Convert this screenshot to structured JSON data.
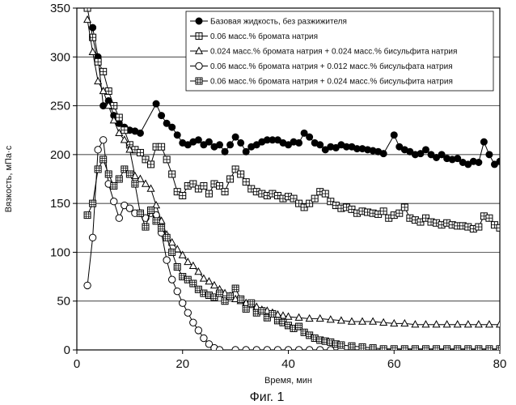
{
  "chart_data": {
    "type": "line",
    "xlabel": "Время, мин",
    "ylabel": "Вязкость, мПа·с",
    "xlim": [
      0,
      80
    ],
    "ylim": [
      0,
      350
    ],
    "xticks": [
      0,
      20,
      40,
      60,
      80
    ],
    "yticks": [
      0,
      50,
      100,
      150,
      200,
      250,
      300,
      350
    ],
    "grid": "horizontal",
    "legend_position": "top-right",
    "caption": "Фиг. 1",
    "series": [
      {
        "name": "Базовая жидкость, без разжижителя",
        "marker": "filled-circle",
        "x": [
          3,
          4,
          5,
          6,
          7,
          8,
          9,
          10,
          11,
          12,
          15,
          16,
          17,
          18,
          19,
          20,
          21,
          22,
          23,
          24,
          25,
          26,
          27,
          28,
          29,
          30,
          31,
          32,
          33,
          34,
          35,
          36,
          37,
          38,
          39,
          40,
          41,
          42,
          43,
          44,
          45,
          46,
          47,
          48,
          49,
          50,
          51,
          52,
          53,
          54,
          55,
          56,
          57,
          58,
          60,
          61,
          62,
          63,
          64,
          65,
          66,
          67,
          68,
          69,
          70,
          71,
          72,
          73,
          74,
          75,
          76,
          77,
          78,
          79,
          80
        ],
        "values": [
          330,
          300,
          250,
          255,
          240,
          232,
          228,
          225,
          224,
          222,
          252,
          240,
          232,
          228,
          220,
          212,
          210,
          213,
          215,
          210,
          213,
          208,
          210,
          203,
          210,
          218,
          212,
          203,
          208,
          210,
          213,
          215,
          215,
          215,
          212,
          210,
          213,
          212,
          222,
          218,
          212,
          210,
          205,
          208,
          207,
          210,
          208,
          208,
          206,
          206,
          205,
          204,
          203,
          201,
          220,
          208,
          205,
          203,
          200,
          201,
          205,
          200,
          197,
          200,
          196,
          195,
          196,
          192,
          190,
          193,
          192,
          213,
          200,
          190,
          193
        ]
      },
      {
        "name": "0.06 масс.% бромата натрия",
        "marker": "square-cross",
        "x": [
          2,
          3,
          4,
          5,
          6,
          7,
          8,
          9,
          10,
          11,
          12,
          13,
          14,
          15,
          16,
          17,
          18,
          19,
          20,
          21,
          22,
          23,
          24,
          25,
          26,
          27,
          28,
          29,
          30,
          31,
          32,
          33,
          34,
          35,
          36,
          37,
          38,
          39,
          40,
          41,
          42,
          43,
          44,
          45,
          46,
          47,
          48,
          49,
          50,
          51,
          52,
          53,
          54,
          55,
          56,
          57,
          58,
          59,
          60,
          61,
          62,
          63,
          64,
          65,
          66,
          67,
          68,
          69,
          70,
          71,
          72,
          73,
          74,
          75,
          76,
          77,
          78,
          79,
          80
        ],
        "values": [
          350,
          320,
          295,
          285,
          265,
          250,
          238,
          225,
          210,
          205,
          202,
          195,
          190,
          208,
          208,
          195,
          180,
          162,
          158,
          168,
          170,
          165,
          168,
          160,
          170,
          168,
          162,
          175,
          185,
          180,
          172,
          165,
          162,
          160,
          158,
          160,
          158,
          155,
          157,
          155,
          150,
          146,
          150,
          155,
          162,
          160,
          152,
          148,
          145,
          146,
          144,
          140,
          142,
          141,
          140,
          139,
          142,
          135,
          138,
          140,
          146,
          135,
          133,
          131,
          135,
          131,
          130,
          128,
          130,
          128,
          127,
          127,
          126,
          124,
          126,
          137,
          135,
          128,
          125
        ]
      },
      {
        "name": "0.024 масс.% бромата натрия + 0.024 масс.% бисульфита натрия",
        "marker": "triangle",
        "x": [
          2,
          3,
          4,
          5,
          6,
          7,
          8,
          9,
          10,
          11,
          12,
          13,
          14,
          15,
          16,
          17,
          18,
          19,
          20,
          21,
          22,
          23,
          24,
          25,
          26,
          27,
          28,
          29,
          30,
          31,
          32,
          33,
          34,
          35,
          36,
          37,
          38,
          39,
          40,
          42,
          44,
          46,
          48,
          50,
          52,
          54,
          56,
          58,
          60,
          62,
          64,
          66,
          68,
          70,
          72,
          74,
          76,
          78,
          80
        ],
        "values": [
          338,
          305,
          275,
          265,
          250,
          235,
          222,
          215,
          205,
          178,
          175,
          170,
          165,
          148,
          132,
          118,
          110,
          103,
          97,
          90,
          86,
          80,
          73,
          70,
          66,
          62,
          58,
          55,
          52,
          50,
          48,
          46,
          44,
          41,
          40,
          38,
          36,
          35,
          34,
          33,
          32,
          32,
          31,
          30,
          29,
          29,
          29,
          28,
          27,
          27,
          26,
          26,
          26,
          26,
          26,
          26,
          26,
          26,
          26
        ]
      },
      {
        "name": "0.06 масс.% бромата натрия + 0.012 масс.% бисульфата натрия",
        "marker": "open-circle",
        "x": [
          2,
          3,
          4,
          5,
          6,
          7,
          8,
          9,
          10,
          11,
          12,
          13,
          14,
          15,
          16,
          17,
          18,
          19,
          20,
          21,
          22,
          23,
          24,
          25,
          26,
          27,
          30,
          32,
          34,
          36,
          38,
          40,
          42,
          44,
          46,
          48,
          50,
          52,
          54,
          56,
          58,
          60,
          62,
          64,
          66,
          68,
          70,
          72,
          74,
          76,
          78,
          80
        ],
        "values": [
          66,
          115,
          205,
          215,
          170,
          152,
          135,
          148,
          145,
          140,
          140,
          135,
          140,
          138,
          120,
          92,
          72,
          60,
          48,
          38,
          28,
          20,
          12,
          6,
          2,
          0,
          0,
          0,
          0,
          0,
          0,
          0,
          0,
          0,
          0,
          0,
          0,
          0,
          0,
          0,
          0,
          0,
          0,
          0,
          0,
          0,
          0,
          0,
          0,
          0,
          0,
          0
        ]
      },
      {
        "name": "0.06 масс.% бромата натрия + 0.024 масс.% бисульфита натрия",
        "marker": "square-hatch",
        "x": [
          2,
          3,
          4,
          5,
          6,
          7,
          8,
          9,
          10,
          11,
          12,
          13,
          14,
          15,
          16,
          17,
          18,
          19,
          20,
          21,
          22,
          23,
          24,
          25,
          26,
          27,
          28,
          29,
          30,
          31,
          32,
          33,
          34,
          35,
          36,
          37,
          38,
          39,
          40,
          41,
          42,
          43,
          44,
          45,
          46,
          47,
          48,
          49,
          50,
          52,
          54,
          56,
          58,
          60,
          62,
          64,
          66,
          68,
          70,
          72,
          74,
          76,
          78,
          80
        ],
        "values": [
          138,
          150,
          185,
          195,
          180,
          168,
          175,
          185,
          180,
          170,
          140,
          126,
          143,
          132,
          125,
          115,
          100,
          85,
          75,
          72,
          68,
          62,
          58,
          56,
          54,
          58,
          50,
          55,
          63,
          52,
          42,
          48,
          38,
          40,
          33,
          37,
          30,
          28,
          25,
          22,
          24,
          18,
          15,
          12,
          10,
          9,
          8,
          6,
          5,
          4,
          3,
          2,
          1,
          1,
          1,
          1,
          1,
          1,
          1,
          1,
          1,
          1,
          1,
          1
        ]
      }
    ]
  }
}
